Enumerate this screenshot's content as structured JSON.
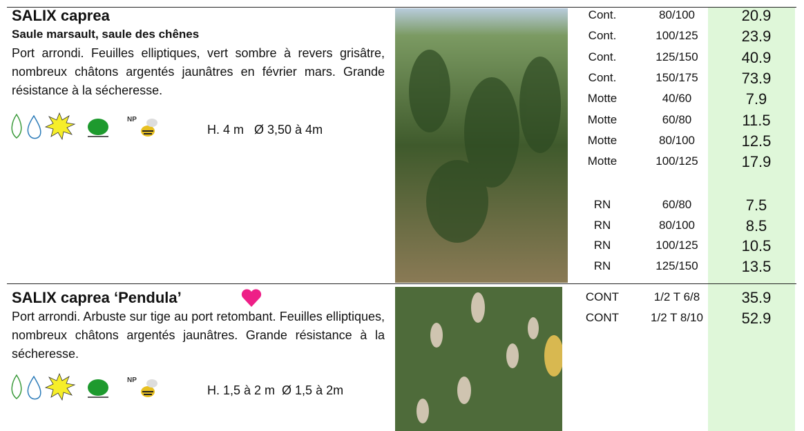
{
  "products": [
    {
      "title": "SALIX caprea",
      "subtitle": "Saule marsault, saule des chênes",
      "description": "Port arrondi. Feuilles elliptiques, vert sombre à revers grisâtre, nombreux châtons argentés jaunâtres en février mars. Grande résistance à la sécheresse.",
      "icon_label": "NP",
      "dimensions": "H. 4 m   Ø 3,50 à 4m",
      "price_groups": [
        [
          [
            "Cont.",
            "80/100",
            "20.9"
          ],
          [
            "Cont.",
            "100/125",
            "23.9"
          ],
          [
            "Cont.",
            "125/150",
            "40.9"
          ],
          [
            "Cont.",
            "150/175",
            "73.9"
          ],
          [
            "Motte",
            "40/60",
            "7.9"
          ],
          [
            "Motte",
            "60/80",
            "11.5"
          ],
          [
            "Motte",
            "80/100",
            "12.5"
          ],
          [
            "Motte",
            "100/125",
            "17.9"
          ]
        ],
        [
          [
            "RN",
            "60/80",
            "7.5"
          ],
          [
            "RN",
            "80/100",
            "8.5"
          ],
          [
            "RN",
            "100/125",
            "10.5"
          ],
          [
            "RN",
            "125/150",
            "13.5"
          ]
        ]
      ]
    },
    {
      "title": "SALIX caprea ‘Pendula’",
      "description": "Port arrondi. Arbuste sur tige au port retombant. Feuilles elliptiques, nombreux châtons argentés jaunâtres. Grande résistance à la sécheresse.",
      "icon_label": "NP",
      "dimensions": "H. 1,5 à 2 m  Ø 1,5 à 2m",
      "price_groups": [
        [
          [
            "CONT",
            "1/2 T 6/8",
            "35.9"
          ],
          [
            "CONT",
            "1/2 T 8/10",
            "52.9"
          ]
        ]
      ]
    }
  ]
}
